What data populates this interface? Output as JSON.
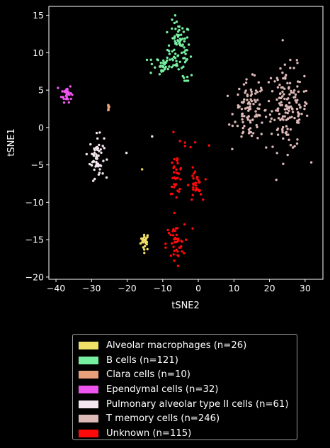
{
  "chart_data": {
    "type": "scatter",
    "xlabel": "tSNE2",
    "ylabel": "tSNE1",
    "xlim": [
      -42,
      35
    ],
    "ylim": [
      -20.3,
      16.2
    ],
    "xticks": [
      -40,
      -30,
      -20,
      -10,
      0,
      10,
      20,
      30
    ],
    "yticks": [
      -20,
      -15,
      -10,
      -5,
      0,
      5,
      10,
      15
    ],
    "xtick_labels": [
      "−40",
      "−30",
      "−20",
      "−10",
      "0",
      "10",
      "20",
      "30"
    ],
    "ytick_labels": [
      "−20",
      "−15",
      "−10",
      "−5",
      "0",
      "5",
      "10",
      "15"
    ],
    "grid": false,
    "legend_position": "below",
    "series": [
      {
        "name": "Alveolar macrophages (n=26)",
        "color": "#f0e068",
        "n": 26,
        "clusters": [
          {
            "cx": -15,
            "cy": -15.2,
            "sx": 0.6,
            "sy": 0.6,
            "n": 25
          }
        ],
        "extra_points": [
          [
            -15.8,
            -5.6
          ]
        ]
      },
      {
        "name": "B cells (n=121)",
        "color": "#76f0a0",
        "n": 121,
        "clusters": [
          {
            "cx": -5.5,
            "cy": 10.5,
            "sx": 1.6,
            "sy": 1.8,
            "n": 85
          },
          {
            "cx": -11,
            "cy": 8.3,
            "sx": 1.5,
            "sy": 0.7,
            "n": 30
          },
          {
            "cx": -3,
            "cy": 6.8,
            "sx": 1.0,
            "sy": 0.5,
            "n": 6
          }
        ],
        "extra_points": []
      },
      {
        "name": "Clara cells (n=10)",
        "color": "#e8a07a",
        "n": 10,
        "clusters": [
          {
            "cx": -25.2,
            "cy": 2.7,
            "sx": 0.15,
            "sy": 0.3,
            "n": 10
          }
        ],
        "extra_points": []
      },
      {
        "name": "Ependymal cells (n=32)",
        "color": "#ee55ee",
        "n": 32,
        "clusters": [
          {
            "cx": -37,
            "cy": 4.6,
            "sx": 0.7,
            "sy": 0.6,
            "n": 32
          }
        ],
        "extra_points": []
      },
      {
        "name": "Pulmonary alveolar type II cells (n=61)",
        "color": "#f4e6ee",
        "n": 61,
        "clusters": [
          {
            "cx": -28.5,
            "cy": -3.9,
            "sx": 1.0,
            "sy": 1.4,
            "n": 58
          }
        ],
        "extra_points": [
          [
            -20.2,
            -3.4
          ],
          [
            -13,
            -1.2
          ],
          [
            -28,
            -6.3
          ]
        ]
      },
      {
        "name": "T memory cells (n=246)",
        "color": "#dcb8b6",
        "n": 246,
        "clusters": [
          {
            "cx": 25,
            "cy": 2.5,
            "sx": 3.0,
            "sy": 2.8,
            "n": 150
          },
          {
            "cx": 14.5,
            "cy": 2.2,
            "sx": 2.2,
            "sy": 2.0,
            "n": 96
          }
        ],
        "extra_points": []
      },
      {
        "name": "Unknown (n=115)",
        "color": "#ff0a0a",
        "n": 115,
        "clusters": [
          {
            "cx": -6.2,
            "cy": -6.2,
            "sx": 0.9,
            "sy": 1.3,
            "n": 35
          },
          {
            "cx": -0.8,
            "cy": -7.8,
            "sx": 0.9,
            "sy": 1.1,
            "n": 30
          },
          {
            "cx": -6.5,
            "cy": -15.6,
            "sx": 1.3,
            "sy": 1.3,
            "n": 42
          },
          {
            "cx": -3,
            "cy": -2.5,
            "sx": 1.3,
            "sy": 0.6,
            "n": 5
          }
        ],
        "extra_points": [
          [
            -7,
            -0.6
          ],
          [
            3,
            -2.4
          ],
          [
            -1.6,
            -13.5
          ]
        ]
      }
    ]
  }
}
